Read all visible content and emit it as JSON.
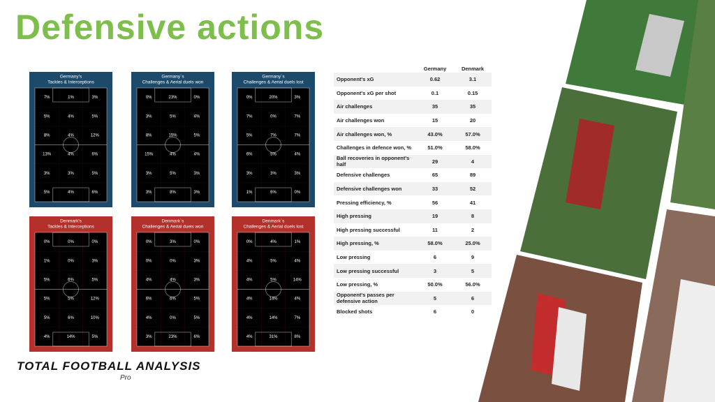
{
  "header": {
    "title": "Defensive actions"
  },
  "panels": [
    {
      "title": [
        "Germany's",
        "Tackles & Interceptions"
      ],
      "color": "#1d4a6b",
      "cell_color": "#5ea8dc",
      "cells": [
        [
          {
            "value": 7,
            "label": "7%"
          },
          {
            "value": 1,
            "label": "1%"
          },
          {
            "value": 3,
            "label": "3%"
          }
        ],
        [
          {
            "value": 5,
            "label": "5%"
          },
          {
            "value": 4,
            "label": "4%"
          },
          {
            "value": 5,
            "label": "5%"
          }
        ],
        [
          {
            "value": 8,
            "label": "8%"
          },
          {
            "value": 4,
            "label": "4%"
          },
          {
            "value": 12,
            "label": "12%"
          }
        ],
        [
          {
            "value": 13,
            "label": "13%"
          },
          {
            "value": 4,
            "label": "4%"
          },
          {
            "value": 6,
            "label": "6%"
          }
        ],
        [
          {
            "value": 3,
            "label": "3%"
          },
          {
            "value": 3,
            "label": "3%"
          },
          {
            "value": 5,
            "label": "5%"
          }
        ],
        [
          {
            "value": 5,
            "label": "5%"
          },
          {
            "value": 4,
            "label": "4%"
          },
          {
            "value": 6,
            "label": "6%"
          }
        ]
      ]
    },
    {
      "title": [
        "Germany`s",
        "Challenges & Aerial duels won"
      ],
      "color": "#1d4a6b",
      "cell_color": "#5ea8dc",
      "cells": [
        [
          {
            "value": 0,
            "label": "0%"
          },
          {
            "value": 23,
            "label": "23%"
          },
          {
            "value": 0,
            "label": "0%"
          }
        ],
        [
          {
            "value": 3,
            "label": "3%"
          },
          {
            "value": 5,
            "label": "5%"
          },
          {
            "value": 4,
            "label": "4%"
          }
        ],
        [
          {
            "value": 8,
            "label": "8%"
          },
          {
            "value": 15,
            "label": "15%"
          },
          {
            "value": 5,
            "label": "5%"
          }
        ],
        [
          {
            "value": 15,
            "label": "15%"
          },
          {
            "value": 4,
            "label": "4%"
          },
          {
            "value": 4,
            "label": "4%"
          }
        ],
        [
          {
            "value": 3,
            "label": "3%"
          },
          {
            "value": 5,
            "label": "5%"
          },
          {
            "value": 3,
            "label": "3%"
          }
        ],
        [
          {
            "value": 3,
            "label": "3%"
          },
          {
            "value": 8,
            "label": "8%"
          },
          {
            "value": 3,
            "label": "3%"
          }
        ]
      ]
    },
    {
      "title": [
        "Germany`s",
        "Challenges & Aerial duels lost"
      ],
      "color": "#1d4a6b",
      "cell_color": "#5ea8dc",
      "cells": [
        [
          {
            "value": 0,
            "label": "0%"
          },
          {
            "value": 20,
            "label": "20%"
          },
          {
            "value": 3,
            "label": "3%"
          }
        ],
        [
          {
            "value": 7,
            "label": "7%"
          },
          {
            "value": 0,
            "label": "0%"
          },
          {
            "value": 7,
            "label": "7%"
          }
        ],
        [
          {
            "value": 5,
            "label": "5%"
          },
          {
            "value": 7,
            "label": "7%"
          },
          {
            "value": 7,
            "label": "7%"
          }
        ],
        [
          {
            "value": 6,
            "label": "6%"
          },
          {
            "value": 5,
            "label": "5%"
          },
          {
            "value": 4,
            "label": "4%"
          }
        ],
        [
          {
            "value": 3,
            "label": "3%"
          },
          {
            "value": 3,
            "label": "3%"
          },
          {
            "value": 3,
            "label": "3%"
          }
        ],
        [
          {
            "value": 1,
            "label": "1%"
          },
          {
            "value": 6,
            "label": "6%"
          },
          {
            "value": 0,
            "label": "0%"
          }
        ]
      ]
    },
    {
      "title": [
        "Denmark's",
        "Tackles & Interceptions"
      ],
      "color": "#b3312a",
      "cell_color": "#f3cbc6",
      "cells": [
        [
          {
            "value": 0,
            "label": "0%"
          },
          {
            "value": 0,
            "label": "0%"
          },
          {
            "value": 0,
            "label": "0%"
          }
        ],
        [
          {
            "value": 1,
            "label": "1%"
          },
          {
            "value": 0,
            "label": "0%"
          },
          {
            "value": 3,
            "label": "3%"
          }
        ],
        [
          {
            "value": 5,
            "label": "5%"
          },
          {
            "value": 6,
            "label": "6%"
          },
          {
            "value": 5,
            "label": "5%"
          }
        ],
        [
          {
            "value": 5,
            "label": "5%"
          },
          {
            "value": 5,
            "label": "5%"
          },
          {
            "value": 12,
            "label": "12%"
          }
        ],
        [
          {
            "value": 5,
            "label": "5%"
          },
          {
            "value": 6,
            "label": "6%"
          },
          {
            "value": 10,
            "label": "10%"
          }
        ],
        [
          {
            "value": 4,
            "label": "4%"
          },
          {
            "value": 14,
            "label": "14%"
          },
          {
            "value": 5,
            "label": "5%"
          }
        ]
      ]
    },
    {
      "title": [
        "Denmark`s",
        "Challenges & Aerial duels won"
      ],
      "color": "#b3312a",
      "cell_color": "#f3cbc6",
      "cells": [
        [
          {
            "value": 0,
            "label": "0%"
          },
          {
            "value": 3,
            "label": "3%"
          },
          {
            "value": 0,
            "label": "0%"
          }
        ],
        [
          {
            "value": 0,
            "label": "0%"
          },
          {
            "value": 0,
            "label": "0%"
          },
          {
            "value": 3,
            "label": "3%"
          }
        ],
        [
          {
            "value": 4,
            "label": "4%"
          },
          {
            "value": 4,
            "label": "4%"
          },
          {
            "value": 3,
            "label": "3%"
          }
        ],
        [
          {
            "value": 6,
            "label": "6%"
          },
          {
            "value": 6,
            "label": "6%"
          },
          {
            "value": 5,
            "label": "5%"
          }
        ],
        [
          {
            "value": 4,
            "label": "4%"
          },
          {
            "value": 0,
            "label": "0%"
          },
          {
            "value": 5,
            "label": "5%"
          }
        ],
        [
          {
            "value": 3,
            "label": "3%"
          },
          {
            "value": 23,
            "label": "23%"
          },
          {
            "value": 6,
            "label": "6%"
          }
        ]
      ]
    },
    {
      "title": [
        "Denmark`s",
        "Challenges & Aerial duels lost"
      ],
      "color": "#b3312a",
      "cell_color": "#f3cbc6",
      "cells": [
        [
          {
            "value": 0,
            "label": "0%"
          },
          {
            "value": 4,
            "label": "4%"
          },
          {
            "value": 1,
            "label": "1%"
          }
        ],
        [
          {
            "value": 4,
            "label": "4%"
          },
          {
            "value": 5,
            "label": "5%"
          },
          {
            "value": 4,
            "label": "4%"
          }
        ],
        [
          {
            "value": 4,
            "label": "4%"
          },
          {
            "value": 5,
            "label": "5%"
          },
          {
            "value": 14,
            "label": "14%"
          }
        ],
        [
          {
            "value": 4,
            "label": "4%"
          },
          {
            "value": 14,
            "label": "14%"
          },
          {
            "value": 4,
            "label": "4%"
          }
        ],
        [
          {
            "value": 4,
            "label": "4%"
          },
          {
            "value": 14,
            "label": "14%"
          },
          {
            "value": 7,
            "label": "7%"
          }
        ],
        [
          {
            "value": 4,
            "label": "4%"
          },
          {
            "value": 31,
            "label": "31%"
          },
          {
            "value": 8,
            "label": "8%"
          }
        ]
      ]
    }
  ],
  "table": {
    "columns": [
      "Germany",
      "Denmark"
    ],
    "rows": [
      [
        "Opponent's xG",
        "0.62",
        "3.1"
      ],
      [
        "Opponent's xG per shot",
        "0.1",
        "0.15"
      ],
      [
        "Air challenges",
        "35",
        "35"
      ],
      [
        "Air challenges won",
        "15",
        "20"
      ],
      [
        "Air challenges won, %",
        "43.0%",
        "57.0%"
      ],
      [
        "Challenges in defence won, %",
        "51.0%",
        "58.0%"
      ],
      [
        "Ball recoveries in opponent's half",
        "29",
        "4"
      ],
      [
        "Defensive challenges",
        "65",
        "89"
      ],
      [
        "Defensive challenges won",
        "33",
        "52"
      ],
      [
        "Pressing efficiency, %",
        "56",
        "41"
      ],
      [
        "High pressing",
        "19",
        "8"
      ],
      [
        "High pressing successful",
        "11",
        "2"
      ],
      [
        "High pressing, %",
        "58.0%",
        "25.0%"
      ],
      [
        "Low pressing",
        "6",
        "9"
      ],
      [
        "Low pressing successful",
        "3",
        "5"
      ],
      [
        "Low pressing, %",
        "50.0%",
        "56.0%"
      ],
      [
        "Opponent's passes per defensive action",
        "5",
        "6"
      ],
      [
        "Blocked shots",
        "6",
        "0"
      ]
    ]
  },
  "logo": {
    "name": "TOTAL FOOTBALL ANALYSIS",
    "sub": "Pro"
  }
}
